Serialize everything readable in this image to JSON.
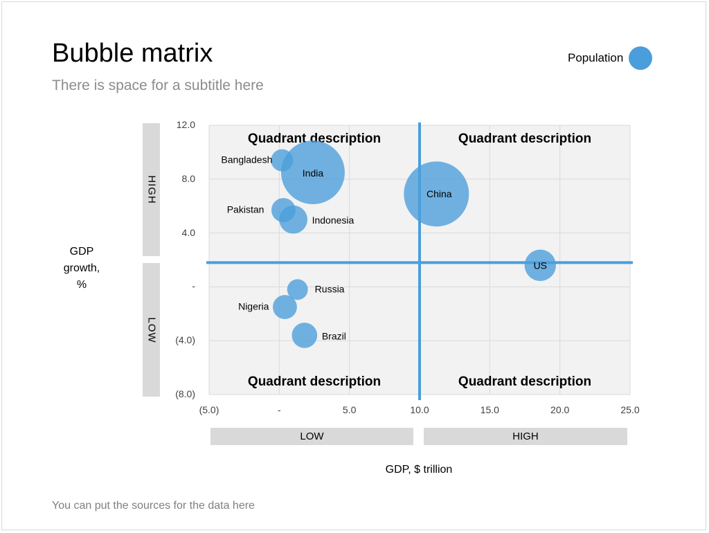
{
  "slide": {
    "title": "Bubble matrix",
    "subtitle": "There is space for a subtitle here",
    "sources": "You can put the sources for the data here",
    "legend_label": "Population",
    "y_axis_title": [
      "GDP",
      "growth,",
      "%"
    ],
    "x_axis_title": "GDP, $ trillion",
    "y_band_high": "HIGH",
    "y_band_low": "LOW",
    "x_band_low": "LOW",
    "x_band_high": "HIGH"
  },
  "colors": {
    "bubble": "#4a9edb",
    "divider": "#4a9edb",
    "plot_bg": "#f2f2f2",
    "band": "#d9d9d9"
  },
  "chart_data": {
    "type": "scatter",
    "xlim": [
      -5,
      25
    ],
    "ylim": [
      -8,
      12
    ],
    "x_ticks": [
      -5,
      0,
      5,
      10,
      15,
      20,
      25
    ],
    "x_tick_labels": [
      "(5.0)",
      "-",
      "5.0",
      "10.0",
      "15.0",
      "20.0",
      "25.0"
    ],
    "y_ticks": [
      12,
      8,
      4,
      0,
      -4,
      -8
    ],
    "y_tick_labels": [
      "12.0",
      "8.0",
      "4.0",
      "-",
      "(4.0)",
      "(8.0)"
    ],
    "grid": true,
    "quadrant_divider": {
      "x": 10,
      "y": 1.8
    },
    "quadrant_labels": [
      "Quadrant description",
      "Quadrant description",
      "Quadrant description",
      "Quadrant description"
    ],
    "points": [
      {
        "name": "Bangladesh",
        "x": 0.2,
        "y": 9.4,
        "population": 0.16
      },
      {
        "name": "India",
        "x": 2.4,
        "y": 8.5,
        "population": 1.32
      },
      {
        "name": "China",
        "x": 11.2,
        "y": 6.9,
        "population": 1.38
      },
      {
        "name": "Pakistan",
        "x": 0.3,
        "y": 5.7,
        "population": 0.19
      },
      {
        "name": "Indonesia",
        "x": 1.0,
        "y": 5.0,
        "population": 0.26
      },
      {
        "name": "US",
        "x": 18.6,
        "y": 1.6,
        "population": 0.32
      },
      {
        "name": "Russia",
        "x": 1.3,
        "y": -0.2,
        "population": 0.14
      },
      {
        "name": "Nigeria",
        "x": 0.4,
        "y": -1.5,
        "population": 0.19
      },
      {
        "name": "Brazil",
        "x": 1.8,
        "y": -3.6,
        "population": 0.21
      }
    ]
  }
}
